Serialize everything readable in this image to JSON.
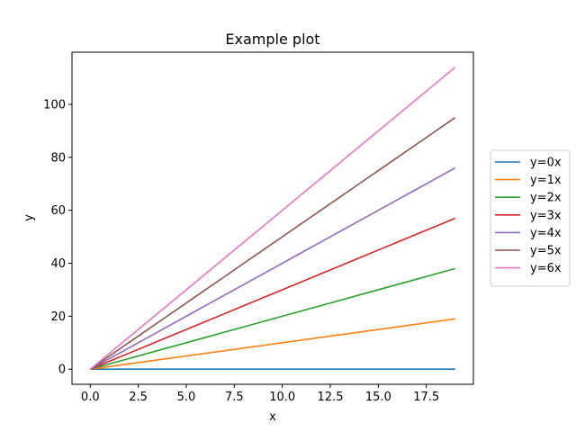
{
  "chart_data": {
    "type": "line",
    "title": "Example plot",
    "xlabel": "x",
    "ylabel": "y",
    "x": [
      0,
      1,
      2,
      3,
      4,
      5,
      6,
      7,
      8,
      9,
      10,
      11,
      12,
      13,
      14,
      15,
      16,
      17,
      18,
      19
    ],
    "series": [
      {
        "name": "y=0x",
        "slope": 0,
        "color": "#1f77b4"
      },
      {
        "name": "y=1x",
        "slope": 1,
        "color": "#ff7f0e"
      },
      {
        "name": "y=2x",
        "slope": 2,
        "color": "#2ca02c"
      },
      {
        "name": "y=3x",
        "slope": 3,
        "color": "#d62728"
      },
      {
        "name": "y=4x",
        "slope": 4,
        "color": "#9467bd"
      },
      {
        "name": "y=5x",
        "slope": 5,
        "color": "#8c564b"
      },
      {
        "name": "y=6x",
        "slope": 6,
        "color": "#e377c2"
      }
    ],
    "xlim": [
      -0.95,
      19.95
    ],
    "ylim": [
      -5.7,
      119.7
    ],
    "xticks": [
      "0.0",
      "2.5",
      "5.0",
      "7.5",
      "10.0",
      "12.5",
      "15.0",
      "17.5"
    ],
    "xtick_values": [
      0,
      2.5,
      5,
      7.5,
      10,
      12.5,
      15,
      17.5
    ],
    "yticks": [
      "0",
      "20",
      "40",
      "60",
      "80",
      "100"
    ],
    "ytick_values": [
      0,
      20,
      40,
      60,
      80,
      100
    ],
    "legend_position": "right, outside plot area",
    "grid": false
  }
}
